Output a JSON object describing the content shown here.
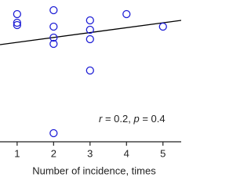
{
  "chart_data": {
    "type": "scatter",
    "x_label": "Number of incidence, times",
    "annotation": [
      "r",
      " = 0.2, ",
      "p",
      " = 0.4"
    ],
    "series": [
      {
        "color": "#1f1fd6",
        "x": [
          1,
          1,
          1,
          2,
          2,
          2,
          2,
          2,
          3,
          3,
          3,
          3,
          4,
          5
        ],
        "values": [
          163,
          152,
          149,
          168,
          147,
          133,
          125,
          11,
          155,
          143,
          131,
          91,
          163,
          147
        ]
      }
    ],
    "fit_line": {
      "x": [
        0.53,
        5.5
      ],
      "y": [
        124,
        155
      ],
      "color": "#000000"
    },
    "xlim": [
      0.53,
      5.5
    ],
    "ylim": [
      0,
      181
    ],
    "xticks": [
      1,
      2,
      3,
      4,
      5
    ]
  }
}
